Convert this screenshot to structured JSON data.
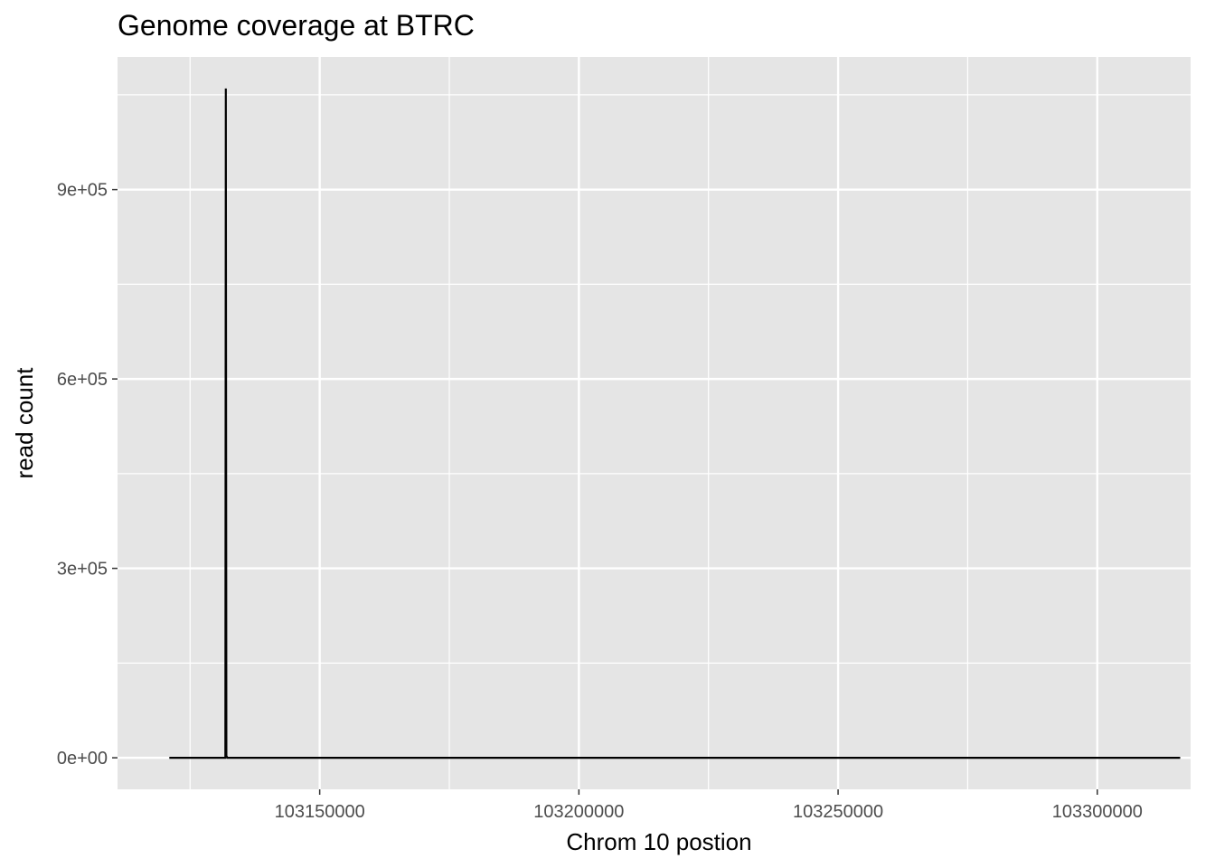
{
  "chart_data": {
    "type": "line",
    "title": "Genome coverage at  BTRC",
    "xlabel": "Chrom  10  postion",
    "ylabel": "read count",
    "xlim": [
      103111000,
      103318000
    ],
    "ylim": [
      -50000,
      1110000
    ],
    "x_ticks": [
      103150000,
      103200000,
      103250000,
      103300000
    ],
    "x_tick_labels": [
      "103150000",
      "103200000",
      "103250000",
      "103300000"
    ],
    "x_minor_ticks": [
      103125000,
      103175000,
      103225000,
      103275000,
      103325000
    ],
    "y_ticks": [
      0,
      300000,
      600000,
      900000
    ],
    "y_tick_labels": [
      "0e+00",
      "3e+05",
      "6e+05",
      "9e+05"
    ],
    "y_minor_ticks": [
      150000,
      450000,
      750000,
      1050000
    ],
    "grid": true,
    "legend": "none",
    "colors": {
      "panel": "#e5e5e5",
      "grid": "#ffffff",
      "line": "#000000",
      "tick_text": "#4d4d4d"
    },
    "series": [
      {
        "x": [
          103121000,
          103131800,
          103131900,
          103132000,
          103132200,
          103141000,
          103180000,
          103220000,
          103260000,
          103300000,
          103316000
        ],
        "values": [
          0,
          0,
          1060000,
          3000,
          0,
          0,
          0,
          0,
          0,
          0,
          0
        ]
      }
    ]
  }
}
